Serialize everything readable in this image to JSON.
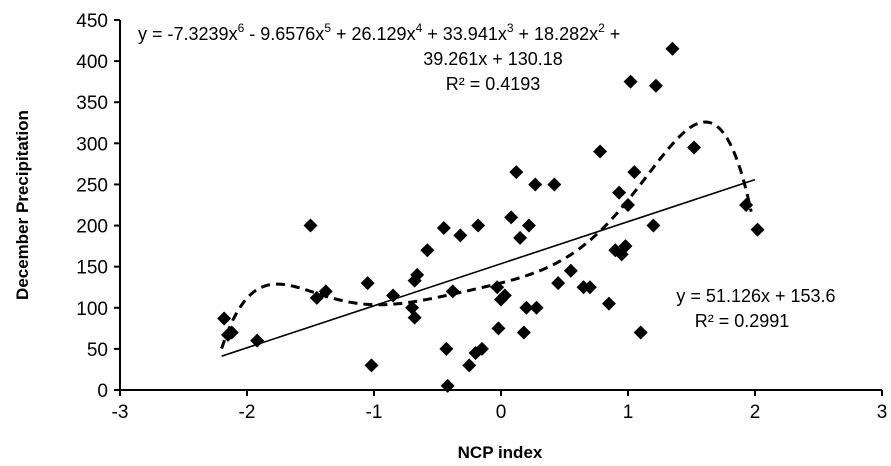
{
  "chart_data": {
    "type": "scatter",
    "xlabel": "NCP index",
    "ylabel": "December Precipitation",
    "xlim": [
      -3,
      3
    ],
    "ylim": [
      0,
      450
    ],
    "x_ticks": [
      "-3",
      "-2",
      "-1",
      "0",
      "1",
      "2",
      "3"
    ],
    "y_ticks": [
      "0",
      "50",
      "100",
      "150",
      "200",
      "250",
      "300",
      "350",
      "400",
      "450"
    ],
    "grid": false,
    "marker": "diamond",
    "points": [
      [
        -2.18,
        87
      ],
      [
        -2.15,
        67
      ],
      [
        -2.12,
        70
      ],
      [
        -1.92,
        60
      ],
      [
        -1.5,
        200
      ],
      [
        -1.45,
        112
      ],
      [
        -1.38,
        120
      ],
      [
        -1.05,
        130
      ],
      [
        -1.02,
        30
      ],
      [
        -0.85,
        115
      ],
      [
        -0.7,
        100
      ],
      [
        -0.68,
        88
      ],
      [
        -0.68,
        133
      ],
      [
        -0.66,
        140
      ],
      [
        -0.58,
        170
      ],
      [
        -0.45,
        197
      ],
      [
        -0.43,
        50
      ],
      [
        -0.42,
        5
      ],
      [
        -0.38,
        120
      ],
      [
        -0.32,
        188
      ],
      [
        -0.25,
        30
      ],
      [
        -0.2,
        45
      ],
      [
        -0.18,
        200
      ],
      [
        -0.15,
        50
      ],
      [
        -0.03,
        125
      ],
      [
        -0.02,
        75
      ],
      [
        0.0,
        110
      ],
      [
        0.03,
        115
      ],
      [
        0.08,
        210
      ],
      [
        0.12,
        265
      ],
      [
        0.15,
        185
      ],
      [
        0.18,
        70
      ],
      [
        0.2,
        100
      ],
      [
        0.22,
        200
      ],
      [
        0.27,
        250
      ],
      [
        0.28,
        100
      ],
      [
        0.42,
        250
      ],
      [
        0.45,
        130
      ],
      [
        0.55,
        145
      ],
      [
        0.65,
        125
      ],
      [
        0.7,
        125
      ],
      [
        0.78,
        290
      ],
      [
        0.85,
        105
      ],
      [
        0.9,
        170
      ],
      [
        0.93,
        240
      ],
      [
        0.95,
        165
      ],
      [
        0.98,
        175
      ],
      [
        1.0,
        225
      ],
      [
        1.02,
        375
      ],
      [
        1.05,
        265
      ],
      [
        1.1,
        70
      ],
      [
        1.2,
        200
      ],
      [
        1.22,
        370
      ],
      [
        1.35,
        415
      ],
      [
        1.52,
        295
      ],
      [
        1.93,
        225
      ],
      [
        2.02,
        195
      ]
    ],
    "linear_fit": {
      "x": [
        -2.2,
        2.0
      ],
      "equation": "y = 51.126x + 153.6",
      "r2_label": "R² = 0.2991"
    },
    "poly_fit": {
      "line_style": "dashed",
      "coefficients": [
        130.18,
        39.261,
        18.282,
        33.941,
        26.129,
        -9.6576,
        -7.3239
      ],
      "x_range": [
        -2.2,
        1.97
      ],
      "equation_line1_parts": [
        "y = -7.3239x",
        "6",
        " - 9.6576x",
        "5",
        " + 26.129x",
        "4",
        " + 33.941x",
        "3",
        " + 18.282x",
        "2",
        " +"
      ],
      "equation_line2": "39.261x + 130.18",
      "r2_label": "R² = 0.4193"
    }
  }
}
